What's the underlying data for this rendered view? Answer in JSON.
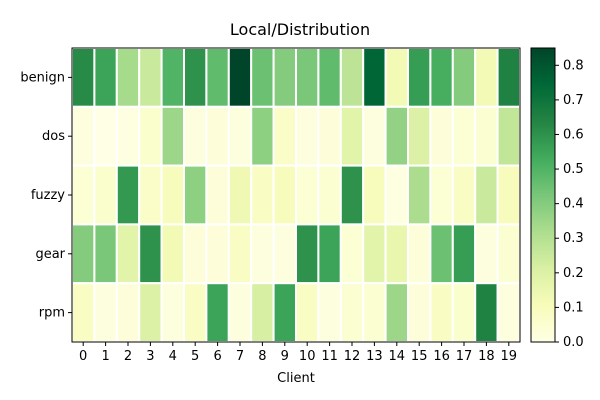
{
  "chart_data": {
    "type": "heatmap",
    "title": "Local/Distribution",
    "xlabel": "Client",
    "ylabel": "",
    "x_categories": [
      "0",
      "1",
      "2",
      "3",
      "4",
      "5",
      "6",
      "7",
      "8",
      "9",
      "10",
      "11",
      "12",
      "13",
      "14",
      "15",
      "16",
      "17",
      "18",
      "19"
    ],
    "y_categories": [
      "benign",
      "dos",
      "fuzzy",
      "gear",
      "rpm"
    ],
    "values": [
      [
        0.62,
        0.55,
        0.33,
        0.25,
        0.5,
        0.6,
        0.47,
        0.85,
        0.45,
        0.4,
        0.42,
        0.47,
        0.28,
        0.75,
        0.12,
        0.57,
        0.52,
        0.4,
        0.12,
        0.65
      ],
      [
        0.02,
        0.0,
        0.01,
        0.06,
        0.35,
        0.02,
        0.03,
        0.02,
        0.38,
        0.07,
        0.02,
        0.03,
        0.18,
        0.02,
        0.37,
        0.2,
        0.03,
        0.04,
        0.05,
        0.27
      ],
      [
        0.04,
        0.06,
        0.58,
        0.07,
        0.1,
        0.38,
        0.03,
        0.13,
        0.08,
        0.1,
        0.04,
        0.05,
        0.6,
        0.1,
        0.01,
        0.32,
        0.04,
        0.08,
        0.25,
        0.1
      ],
      [
        0.4,
        0.42,
        0.18,
        0.6,
        0.12,
        0.03,
        0.03,
        0.08,
        0.02,
        0.02,
        0.6,
        0.55,
        0.04,
        0.18,
        0.16,
        0.03,
        0.45,
        0.57,
        0.02,
        0.05
      ],
      [
        0.08,
        0.02,
        0.03,
        0.2,
        0.02,
        0.08,
        0.55,
        0.02,
        0.22,
        0.55,
        0.08,
        0.02,
        0.05,
        0.05,
        0.35,
        0.03,
        0.08,
        0.06,
        0.65,
        0.02
      ]
    ],
    "colorbar": {
      "min": 0.0,
      "max": 0.85,
      "ticks": [
        "0.0",
        "0.1",
        "0.2",
        "0.3",
        "0.4",
        "0.5",
        "0.6",
        "0.7",
        "0.8"
      ],
      "colormap": "Greens_r"
    },
    "colors": {
      "low": "#ffffe5",
      "high": "#004529",
      "cell_border": "#ffffff",
      "frame": "#000000"
    }
  }
}
